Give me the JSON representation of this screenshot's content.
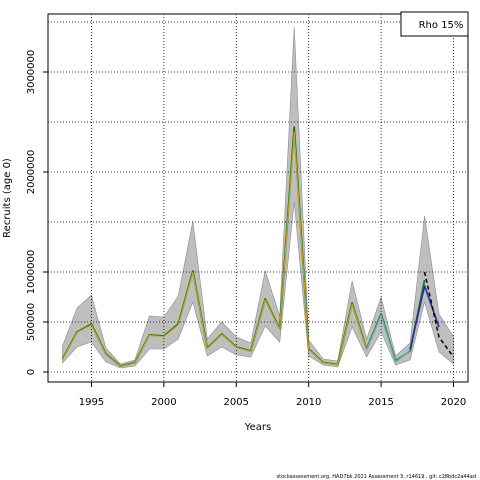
{
  "chart_data": {
    "type": "line",
    "xlabel": "Years",
    "ylabel": "Recruits (age 0)",
    "legend_label": "Rho 15%",
    "legend_position": "top-right",
    "footer": "stockassessment.org,  HAD7bk  2021  Assessment  3,  r14619 ,  git:  c28bdc2a44ad",
    "xlim": [
      1992,
      2021
    ],
    "ylim": [
      -100000,
      3580000
    ],
    "xticks": [
      1995,
      2000,
      2005,
      2010,
      2015,
      2020
    ],
    "yticks": [
      0,
      500000,
      1000000,
      2000000,
      3000000
    ],
    "ytick_labels": [
      "0",
      "500000",
      "1000000",
      "2000000",
      "3000000"
    ],
    "grid_x": [
      1995,
      2000,
      2005,
      2010,
      2015,
      2020
    ],
    "grid_y": [
      0,
      500000,
      1000000,
      1500000,
      2000000,
      2500000,
      3000000,
      3500000
    ],
    "grid": true,
    "band": {
      "color": "#bebebe",
      "x": [
        1993,
        1994,
        1995,
        1996,
        1997,
        1998,
        1999,
        2000,
        2001,
        2002,
        2003,
        2004,
        2005,
        2006,
        2007,
        2008,
        2009,
        2010,
        2011,
        2012,
        2013,
        2014,
        2015,
        2016,
        2017,
        2018,
        2019,
        2020
      ],
      "lower": [
        90000,
        250000,
        300000,
        100000,
        40000,
        60000,
        230000,
        230000,
        330000,
        700000,
        160000,
        250000,
        170000,
        150000,
        460000,
        300000,
        1700000,
        160000,
        70000,
        50000,
        450000,
        150000,
        400000,
        70000,
        120000,
        700000,
        200000,
        80000
      ],
      "upper": [
        260000,
        640000,
        770000,
        240000,
        80000,
        120000,
        560000,
        550000,
        760000,
        1510000,
        330000,
        500000,
        350000,
        290000,
        1010000,
        560000,
        3450000,
        320000,
        130000,
        110000,
        910000,
        330000,
        750000,
        160000,
        290000,
        1560000,
        580000,
        350000
      ]
    },
    "series": [
      {
        "color": "#1a7a1a",
        "width": 1.8,
        "dash": "",
        "x": [
          1993,
          1994,
          1995,
          1996,
          1997,
          1998,
          1999,
          2000,
          2001,
          2002,
          2003,
          2004,
          2005,
          2006,
          2007,
          2008,
          2009,
          2010,
          2011,
          2012,
          2013,
          2014,
          2015,
          2016,
          2017,
          2018
        ],
        "values": [
          130000,
          400000,
          480000,
          180000,
          60000,
          95000,
          370000,
          360000,
          480000,
          1010000,
          240000,
          380000,
          250000,
          210000,
          730000,
          430000,
          2450000,
          230000,
          95000,
          75000,
          690000,
          230000,
          580000,
          110000,
          210000,
          920000
        ]
      },
      {
        "color": "#d9a21b",
        "width": 1.0,
        "dash": "",
        "x": [
          1993,
          1994,
          1995,
          1996,
          1997,
          1998,
          1999,
          2000,
          2001,
          2002,
          2003,
          2004,
          2005,
          2006,
          2007,
          2008,
          2009,
          2010,
          2011,
          2012,
          2013,
          2014,
          2015,
          2016,
          2017
        ],
        "values": [
          125000,
          395000,
          470000,
          175000,
          58000,
          92000,
          365000,
          355000,
          470000,
          995000,
          235000,
          375000,
          245000,
          205000,
          720000,
          425000,
          2400000,
          225000,
          92000,
          72000,
          680000,
          225000,
          570000,
          105000,
          200000
        ]
      },
      {
        "color": "#4fb3d9",
        "width": 1.2,
        "dash": "",
        "x": [
          2014,
          2015,
          2016,
          2017
        ],
        "values": [
          220000,
          560000,
          100000,
          220000
        ]
      },
      {
        "color": "#2a2aa0",
        "width": 1.6,
        "dash": "",
        "x": [
          2017,
          2018,
          2019
        ],
        "values": [
          230000,
          860000,
          450000
        ]
      },
      {
        "color": "#000000",
        "width": 1.5,
        "dash": "4,3",
        "x": [
          2018,
          2019,
          2020
        ],
        "values": [
          1000000,
          350000,
          150000
        ]
      }
    ]
  }
}
